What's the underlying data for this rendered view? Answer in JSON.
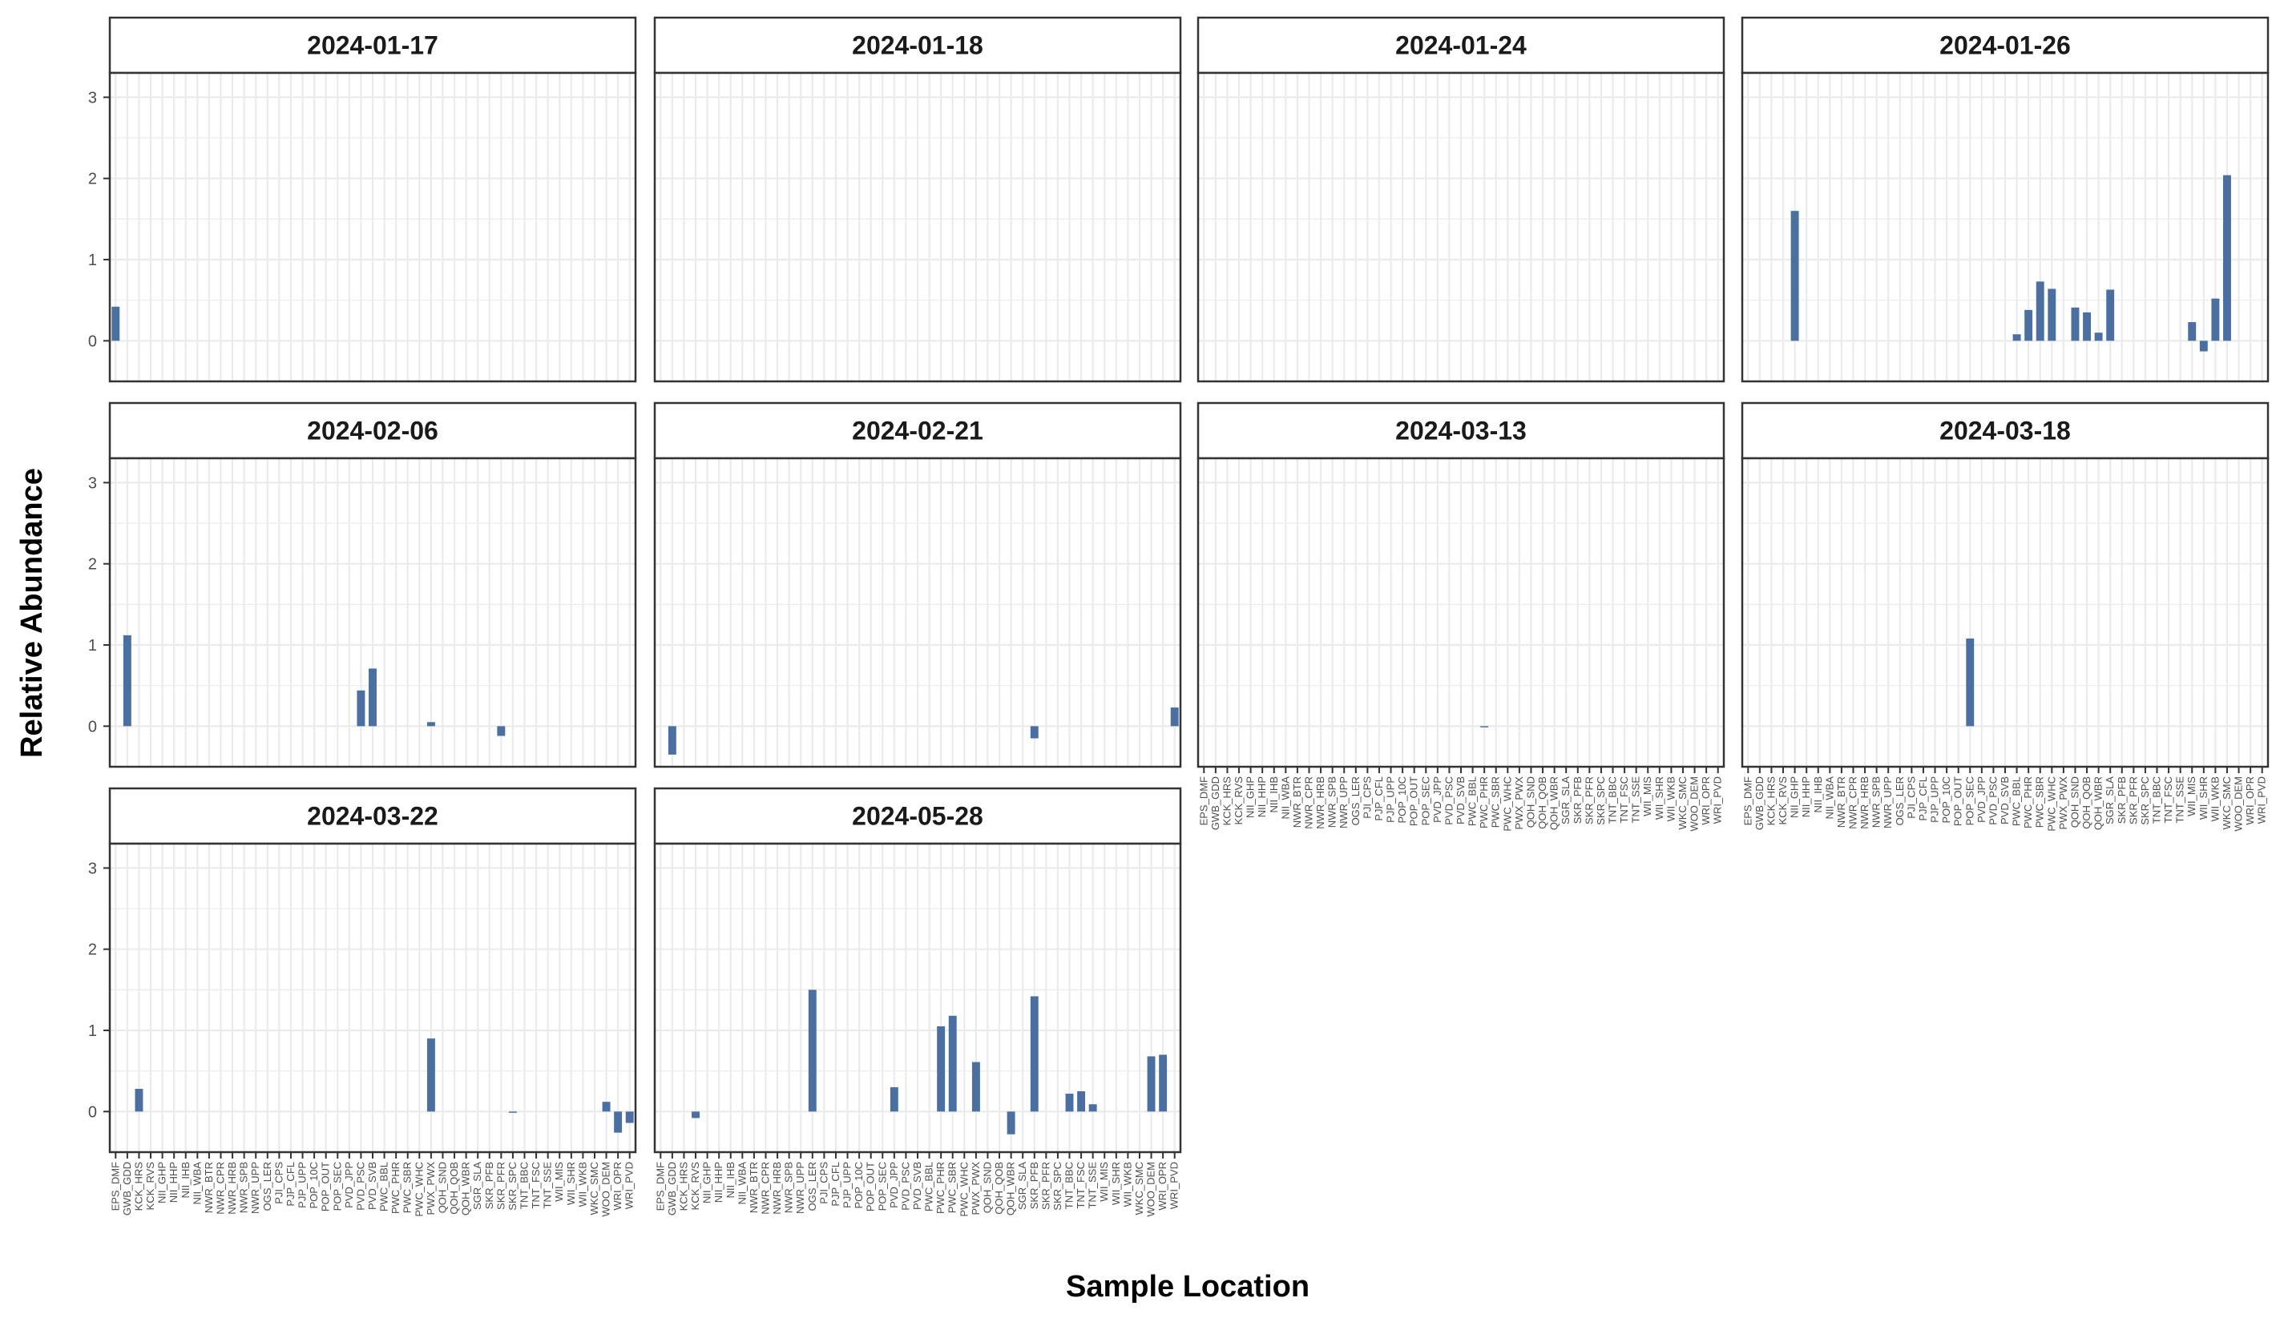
{
  "chart_data": {
    "type": "bar",
    "xlabel": "Sample Location",
    "ylabel": "Relative Abundance",
    "ylim": [
      -0.5,
      3.3
    ],
    "yticks": [
      0,
      1,
      2,
      3
    ],
    "grid": true,
    "bar_color": "#4a6fa0",
    "categories": [
      "EPS_DMF",
      "GWB_GDD",
      "KCK_HRS",
      "KCK_RVS",
      "NII_GHP",
      "NII_HHP",
      "NII_IHB",
      "NII_WBA",
      "NWR_BTR",
      "NWR_CPR",
      "NWR_HRB",
      "NWR_SPB",
      "NWR_UPP",
      "OGS_LER",
      "PJI_CPS",
      "PJP_CFL",
      "PJP_UPP",
      "POP_10C",
      "POP_OUT",
      "POP_SEC",
      "PVD_JPP",
      "PVD_PSC",
      "PVD_SVB",
      "PWC_BBL",
      "PWC_PHR",
      "PWC_SBR",
      "PWC_WHC",
      "PWX_PWX",
      "QOH_SND",
      "QOH_QOB",
      "QOH_WBR",
      "SGR_SLA",
      "SKR_PFB",
      "SKR_PFR",
      "SKR_SPC",
      "TNT_BBC",
      "TNT_FSC",
      "TNT_SSE",
      "WII_MIS",
      "WII_SHR",
      "WII_WKB",
      "WKC_SMC",
      "WOO_DEM",
      "WRI_OPR",
      "WRI_PVD"
    ],
    "panels": [
      {
        "title": "2024-01-17",
        "values": [
          0.42,
          0,
          0,
          0,
          0,
          0,
          0,
          0,
          0,
          0,
          0,
          0,
          0,
          0,
          0,
          0,
          0,
          0,
          0,
          0,
          0,
          0,
          0,
          0,
          0,
          0,
          0,
          0,
          0,
          0,
          0,
          0,
          0,
          0,
          0,
          0,
          0,
          0,
          0,
          0,
          0,
          0,
          0,
          0,
          0
        ]
      },
      {
        "title": "2024-01-18",
        "values": [
          0,
          0,
          0,
          0,
          0,
          0,
          0,
          0,
          0,
          0,
          0,
          0,
          0,
          0,
          0,
          0,
          0,
          0,
          0,
          0,
          0,
          0,
          0,
          0,
          0,
          0,
          0,
          0,
          0,
          0,
          0,
          0,
          0,
          0,
          0,
          0,
          0,
          0,
          0,
          0,
          0,
          0,
          0,
          0,
          0
        ]
      },
      {
        "title": "2024-01-24",
        "values": [
          0,
          0,
          0,
          0,
          0,
          0,
          0,
          0,
          0,
          0,
          0,
          0,
          0,
          0,
          0,
          0,
          0,
          0,
          0,
          0,
          0,
          0,
          0,
          0,
          0,
          0,
          0,
          0,
          0,
          0,
          0,
          0,
          0,
          0,
          0,
          0,
          0,
          0,
          0,
          0,
          0,
          0,
          0,
          0,
          0
        ]
      },
      {
        "title": "2024-01-26",
        "values": [
          0,
          0,
          0,
          0,
          1.6,
          0,
          0,
          0,
          0,
          0,
          0,
          0,
          0,
          0,
          0,
          0,
          0,
          0,
          0,
          0,
          0,
          0,
          0,
          0.08,
          0.38,
          0.73,
          0.64,
          0,
          0.41,
          0.35,
          0.1,
          0.63,
          0,
          0,
          0,
          0,
          0,
          0,
          0.23,
          -0.13,
          0.52,
          2.04,
          0,
          0,
          0
        ]
      },
      {
        "title": "2024-02-06",
        "values": [
          0,
          1.12,
          0,
          0,
          0,
          0,
          0,
          0,
          0,
          0,
          0,
          0,
          0,
          0,
          0,
          0,
          0,
          0,
          0,
          0,
          0,
          0.44,
          0.71,
          0,
          0,
          0,
          0,
          0.05,
          0,
          0,
          0,
          0,
          0,
          -0.12,
          0,
          0,
          0,
          0,
          0,
          0,
          0,
          0,
          0,
          0,
          0
        ]
      },
      {
        "title": "2024-02-21",
        "values": [
          0,
          -0.35,
          0,
          0,
          0,
          0,
          0,
          0,
          0,
          0,
          0,
          0,
          0,
          0,
          0,
          0,
          0,
          0,
          0,
          0,
          0,
          0,
          0,
          0,
          0,
          0,
          0,
          0,
          0,
          0,
          0,
          0,
          -0.15,
          0,
          0,
          0,
          0,
          0,
          0,
          0,
          0,
          0,
          0,
          0,
          0.23
        ]
      },
      {
        "title": "2024-03-13",
        "values": [
          0,
          0,
          0,
          0,
          0,
          0,
          0,
          0,
          0,
          0,
          0,
          0,
          0,
          0,
          0,
          0,
          0,
          0,
          0,
          0,
          0,
          0,
          0,
          0,
          -0.01,
          0,
          0,
          0,
          0,
          0,
          0,
          0,
          0,
          0,
          0,
          0,
          0,
          0,
          0,
          0,
          0,
          0,
          0,
          0,
          0
        ]
      },
      {
        "title": "2024-03-18",
        "values": [
          0,
          0,
          0,
          0,
          0,
          0,
          0,
          0,
          0,
          0,
          0,
          0,
          0,
          0,
          0,
          0,
          0,
          0,
          0,
          1.08,
          0,
          0,
          0,
          0,
          0,
          0,
          0,
          0,
          0,
          0,
          0,
          0,
          0,
          0,
          0,
          0,
          0,
          0,
          0,
          0,
          0,
          0,
          0,
          0,
          0
        ]
      },
      {
        "title": "2024-03-22",
        "values": [
          0,
          0,
          0.28,
          0,
          0,
          0,
          0,
          0,
          0,
          0,
          0,
          0,
          0,
          0,
          0,
          0,
          0,
          0,
          0,
          0,
          0,
          0,
          0,
          0,
          0,
          0,
          0,
          0.9,
          0,
          0,
          0,
          0,
          0,
          0,
          -0.01,
          0,
          0,
          0,
          0,
          0,
          0,
          0,
          0.12,
          -0.26,
          -0.14
        ]
      },
      {
        "title": "2024-05-28",
        "values": [
          0,
          0,
          0,
          -0.08,
          0,
          0,
          0,
          0,
          0,
          0,
          0,
          0,
          0,
          1.5,
          0,
          0,
          0,
          0,
          0,
          0,
          0.3,
          0,
          0,
          0,
          1.05,
          1.18,
          0,
          0.61,
          0,
          0,
          -0.28,
          0,
          1.42,
          0,
          0,
          0.22,
          0.25,
          0.09,
          0,
          0,
          0,
          0,
          0.68,
          0.7,
          0
        ]
      }
    ],
    "x_tick_panels": [
      "2024-03-13",
      "2024-03-18",
      "2024-03-22",
      "2024-05-28"
    ]
  }
}
